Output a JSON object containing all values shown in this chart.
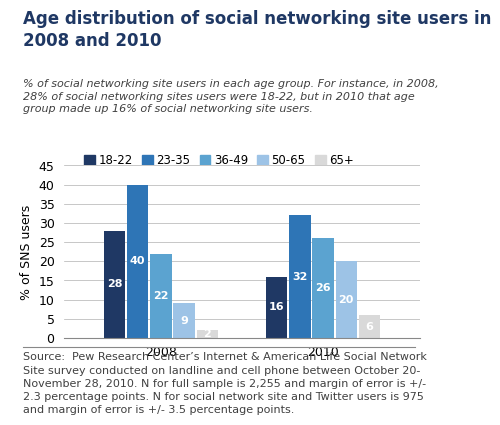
{
  "title": "Age distribution of social networking site users in\n2008 and 2010",
  "subtitle": "% of social networking site users in each age group. For instance, in 2008,\n28% of social networking sites users were 18-22, but in 2010 that age\ngroup made up 16% of social networking site users.",
  "source_text": "Source:  Pew Research Center’s Internet & American Life Social Network\nSite survey conducted on landline and cell phone between October 20-\nNovember 28, 2010. N for full sample is 2,255 and margin of error is +/-\n2.3 percentage points. N for social network site and Twitter users is 975\nand margin of error is +/- 3.5 percentage points.",
  "years": [
    "2008",
    "2010"
  ],
  "age_groups": [
    "18-22",
    "23-35",
    "36-49",
    "50-65",
    "65+"
  ],
  "values_2008": [
    28,
    40,
    22,
    9,
    2
  ],
  "values_2010": [
    16,
    32,
    26,
    20,
    6
  ],
  "colors": [
    "#1f3864",
    "#2e75b6",
    "#5ba3d0",
    "#9dc3e6",
    "#d9d9d9"
  ],
  "ylabel": "% of SNS users",
  "ylim": [
    0,
    45
  ],
  "yticks": [
    0,
    5,
    10,
    15,
    20,
    25,
    30,
    35,
    40,
    45
  ],
  "bar_width": 0.055,
  "title_fontsize": 12,
  "subtitle_fontsize": 8,
  "source_fontsize": 8,
  "label_fontsize": 8,
  "legend_fontsize": 8.5,
  "axis_fontsize": 9
}
